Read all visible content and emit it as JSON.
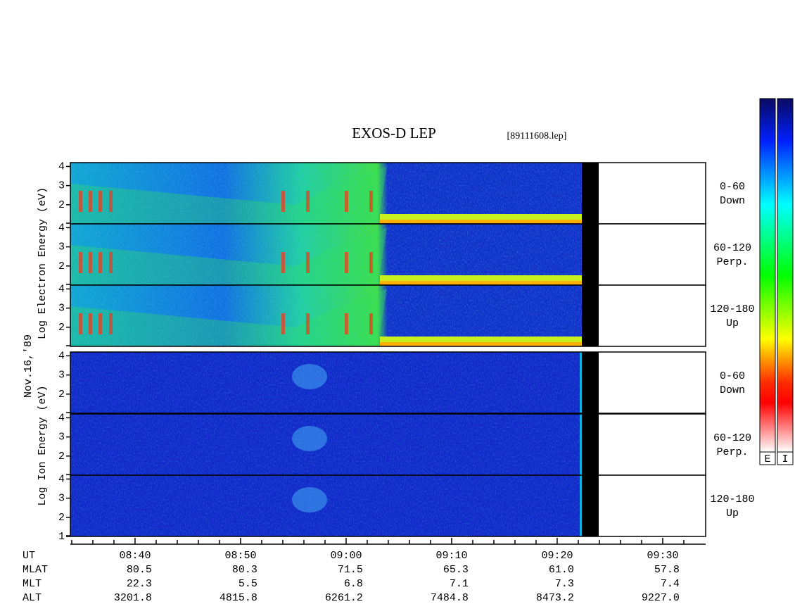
{
  "title": "EXOS-D LEP",
  "file": "[89111608.lep]",
  "date_label": "Nov.16,'89",
  "electron_axis_label": "Log  Electron  Energy (eV)",
  "ion_axis_label": "Log  Ion  Energy (eV)",
  "ylim": [
    1,
    4.2
  ],
  "panels": [
    {
      "species": "electron",
      "angle": "0-60",
      "direction": "Down",
      "yticks": [
        2,
        3,
        4
      ]
    },
    {
      "species": "electron",
      "angle": "60-120",
      "direction": "Perp.",
      "yticks": [
        2,
        3,
        4
      ]
    },
    {
      "species": "electron",
      "angle": "120-180",
      "direction": "Up",
      "yticks": [
        2,
        3,
        4
      ]
    },
    {
      "species": "ion",
      "angle": "0-60",
      "direction": "Down",
      "yticks": [
        2,
        3,
        4
      ]
    },
    {
      "species": "ion",
      "angle": "60-120",
      "direction": "Perp.",
      "yticks": [
        2,
        3,
        4
      ]
    },
    {
      "species": "ion",
      "angle": "120-180",
      "direction": "Up",
      "yticks": [
        1,
        2,
        3,
        4
      ]
    }
  ],
  "xlim": [
    513.87,
    574.07
  ],
  "xticks": [
    {
      "value": 520,
      "label": "08:40"
    },
    {
      "value": 530,
      "label": "08:50"
    },
    {
      "value": 540,
      "label": "09:00"
    },
    {
      "value": 550,
      "label": "09:10"
    },
    {
      "value": 560,
      "label": "09:20"
    },
    {
      "value": 570,
      "label": "09:30"
    }
  ],
  "minor_xticks": [
    514,
    516,
    518,
    522,
    524,
    526,
    528,
    532,
    534,
    536,
    538,
    542,
    544,
    546,
    548,
    552,
    554,
    556,
    558,
    562,
    564,
    566,
    568,
    572
  ],
  "orbit_rows": [
    {
      "name": "UT",
      "values": []
    },
    {
      "name": "MLAT",
      "values": [
        "80.5",
        "80.3",
        "71.5",
        "65.3",
        "61.0",
        "57.8"
      ]
    },
    {
      "name": "MLT",
      "values": [
        "22.3",
        "5.5",
        "6.8",
        "7.1",
        "7.3",
        "7.4"
      ]
    },
    {
      "name": "ALT",
      "values": [
        "3201.8",
        "4815.8",
        "6261.2",
        "7484.8",
        "8473.2",
        "9227.0"
      ]
    }
  ],
  "colorbar_labels": [
    "E",
    "I"
  ]
}
